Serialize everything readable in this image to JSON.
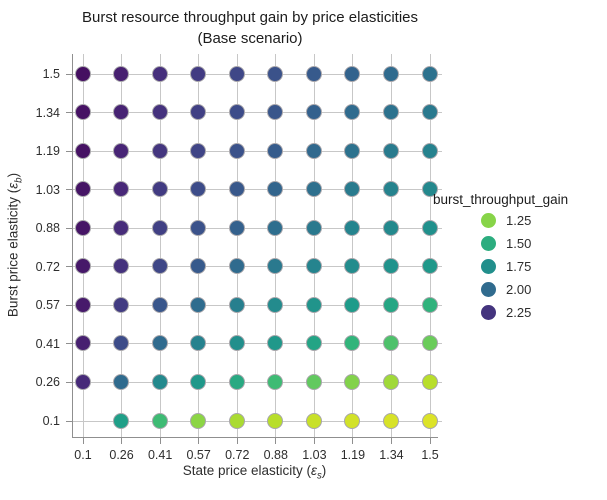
{
  "colors": {
    "background": "#ffffff",
    "grid": "#c7c7c7",
    "spine": "#8f8f8f",
    "dot_stroke": "#a8a6ab",
    "title_text": "#1c1c1c",
    "tick_text": "#2e2e2e"
  },
  "chart_data": {
    "type": "scatter",
    "title": "Burst resource throughput gain by price elasticities",
    "subtitle": "(Base scenario)",
    "xlabel": {
      "text": "State price elasticity (",
      "symbol": "ε",
      "subscript": "s",
      "close": ")"
    },
    "ylabel": {
      "text": "Burst price elasticity (",
      "symbol": "ε",
      "subscript": "b",
      "close": ")"
    },
    "x_ticks": [
      "0.1",
      "0.26",
      "0.41",
      "0.57",
      "0.72",
      "0.88",
      "1.03",
      "1.19",
      "1.34",
      "1.5"
    ],
    "y_ticks": [
      "1.5",
      "1.34",
      "1.19",
      "1.03",
      "0.88",
      "0.72",
      "0.57",
      "0.41",
      "0.26",
      "0.1"
    ],
    "grid": true,
    "legend": {
      "title": "burst_throughput_gain",
      "position": "right",
      "labels": [
        "1.25",
        "1.50",
        "1.75",
        "2.00",
        "2.25"
      ],
      "values": [
        1.25,
        1.5,
        1.75,
        2.0,
        2.25
      ]
    },
    "color_scale": {
      "name": "viridis-reversed",
      "value_at_dark_end": 2.443,
      "value_at_yellow_end": 1.014
    },
    "x_categories": [
      0.1,
      0.26,
      0.41,
      0.57,
      0.72,
      0.88,
      1.03,
      1.19,
      1.34,
      1.5
    ],
    "series": [
      {
        "eps_b": 1.5,
        "gains": [
          2.39,
          2.33,
          2.27,
          2.22,
          2.17,
          2.12,
          2.08,
          2.04,
          2.0,
          1.96
        ]
      },
      {
        "eps_b": 1.34,
        "gains": [
          2.38,
          2.32,
          2.26,
          2.2,
          2.15,
          2.1,
          2.05,
          2.0,
          1.96,
          1.92
        ]
      },
      {
        "eps_b": 1.19,
        "gains": [
          2.38,
          2.31,
          2.24,
          2.18,
          2.12,
          2.07,
          2.01,
          1.96,
          1.91,
          1.87
        ]
      },
      {
        "eps_b": 1.03,
        "gains": [
          2.37,
          2.3,
          2.22,
          2.15,
          2.09,
          2.03,
          1.97,
          1.91,
          1.86,
          1.81
        ]
      },
      {
        "eps_b": 0.88,
        "gains": [
          2.37,
          2.28,
          2.2,
          2.12,
          2.05,
          1.98,
          1.92,
          1.85,
          1.8,
          1.74
        ]
      },
      {
        "eps_b": 0.72,
        "gains": [
          2.36,
          2.26,
          2.17,
          2.08,
          2.0,
          1.92,
          1.85,
          1.78,
          1.71,
          1.65
        ]
      },
      {
        "eps_b": 0.57,
        "gains": [
          2.35,
          2.22,
          2.1,
          1.99,
          1.89,
          1.79,
          1.7,
          1.62,
          1.54,
          1.47
        ]
      },
      {
        "eps_b": 0.41,
        "gains": [
          2.33,
          2.15,
          2.0,
          1.87,
          1.75,
          1.65,
          1.55,
          1.46,
          1.38,
          1.31
        ]
      },
      {
        "eps_b": 0.26,
        "gains": [
          2.29,
          2.0,
          1.8,
          1.65,
          1.52,
          1.42,
          1.33,
          1.26,
          1.2,
          1.15
        ]
      },
      {
        "eps_b": 0.1,
        "gains": [
          null,
          1.58,
          1.42,
          1.24,
          1.18,
          1.15,
          1.12,
          1.1,
          1.09,
          1.08
        ]
      }
    ]
  }
}
